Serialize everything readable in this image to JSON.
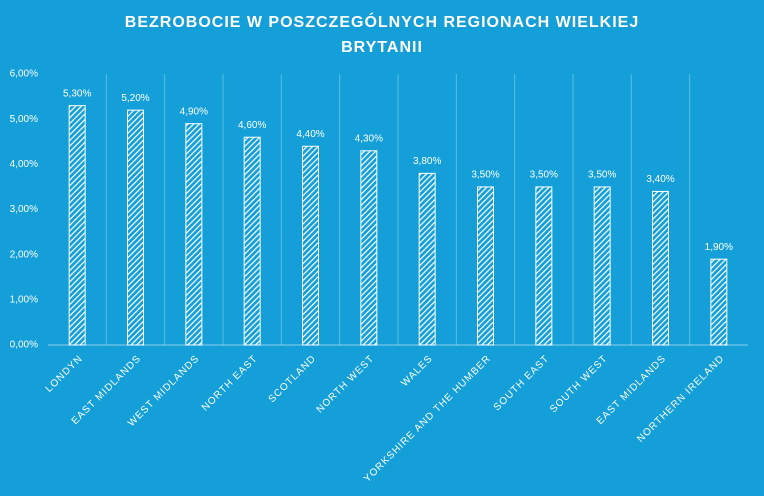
{
  "chart_data": {
    "type": "bar",
    "title": "BEZROBOCIE W POSZCZEGÓLNYCH REGIONACH WIELKIEJ BRYTANII",
    "categories": [
      "LONDYN",
      "EAST MIDLANDS",
      "WEST MIDLANDS",
      "NORTH EAST",
      "SCOTLAND",
      "NORTH WEST",
      "WALES",
      "YORKSHIRE AND THE HUMBER",
      "SOUTH EAST",
      "SOUTH WEST",
      "EAST MIDLANDS",
      "NORTHERN IRELAND"
    ],
    "values": [
      5.3,
      5.2,
      4.9,
      4.6,
      4.4,
      4.3,
      3.8,
      3.5,
      3.5,
      3.5,
      3.4,
      1.9
    ],
    "value_labels": [
      "5,30%",
      "5,20%",
      "4,90%",
      "4,60%",
      "4,40%",
      "4,30%",
      "3,80%",
      "3,50%",
      "3,50%",
      "3,50%",
      "3,40%",
      "1,90%"
    ],
    "color": "#ffffff",
    "ylim": [
      0,
      6
    ],
    "yticks": [
      {
        "value": 0,
        "label": "0,00%"
      },
      {
        "value": 1,
        "label": "1,00%"
      },
      {
        "value": 2,
        "label": "2,00%"
      },
      {
        "value": 3,
        "label": "3,00%"
      },
      {
        "value": 4,
        "label": "4,00%"
      },
      {
        "value": 5,
        "label": "5,00%"
      },
      {
        "value": 6,
        "label": "6,00%"
      }
    ]
  }
}
